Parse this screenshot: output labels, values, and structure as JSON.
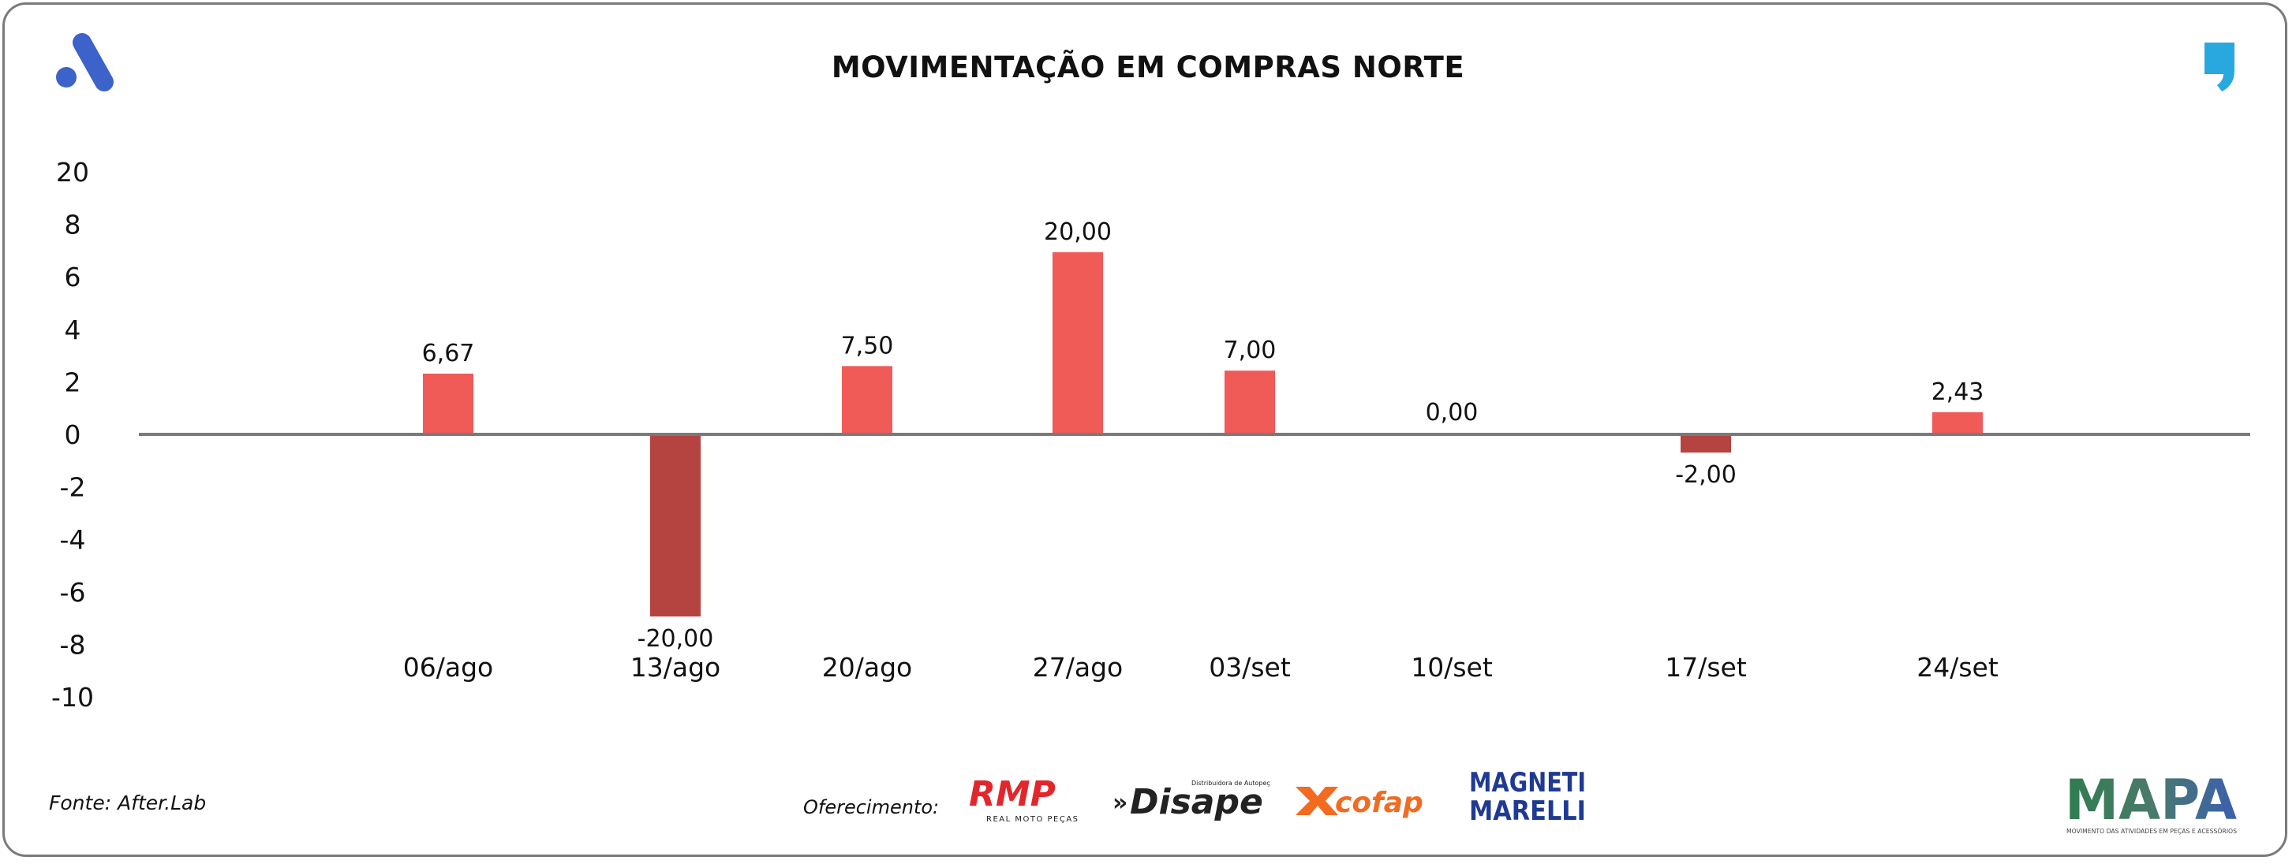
{
  "title": "MOVIMENTAÇÃO EM COMPRAS NORTE",
  "source": "Fonte: After.Lab",
  "sponsor_label": "Oferecimento:",
  "sponsors": {
    "rmp": "RMP",
    "rmp_sub": "REAL MOTO PEÇAS",
    "disape": "Disape",
    "disape_sub": "Distribuidora de Autopeças",
    "cofap": "cofap",
    "marelli_1": "MAGNETI",
    "marelli_2": "MARELLI"
  },
  "mapa": {
    "name": "MAPA",
    "tagline": "MOVIMENTO DAS ATIVIDADES EM PEÇAS E ACESSÓRIOS"
  },
  "colors": {
    "positive": "#f05a57",
    "negative": "#b5433f",
    "axis": "#7a7a7a",
    "logo_left": "#3d62c9",
    "logo_right": "#29a8e0"
  },
  "icons": {
    "left": "after-lab-logo-icon",
    "right": "quote-mark-icon"
  },
  "chart_data": {
    "type": "bar",
    "title": "MOVIMENTAÇÃO EM COMPRAS NORTE",
    "categories": [
      "06/ago",
      "13/ago",
      "20/ago",
      "27/ago",
      "03/set",
      "10/set",
      "17/set",
      "24/set"
    ],
    "values": [
      6.67,
      -20.0,
      7.5,
      20.0,
      7.0,
      0.0,
      -2.0,
      2.43
    ],
    "data_labels": [
      "6,67",
      "-20,00",
      "7,50",
      "20,00",
      "7,00",
      "0,00",
      "-2,00",
      "2,43"
    ],
    "y_tick_labels": [
      "20",
      "8",
      "6",
      "4",
      "2",
      "0",
      "-2",
      "-4",
      "-6",
      "-8",
      "-10"
    ],
    "xlabel": "",
    "ylabel": "",
    "grid": false,
    "legend": "none"
  }
}
